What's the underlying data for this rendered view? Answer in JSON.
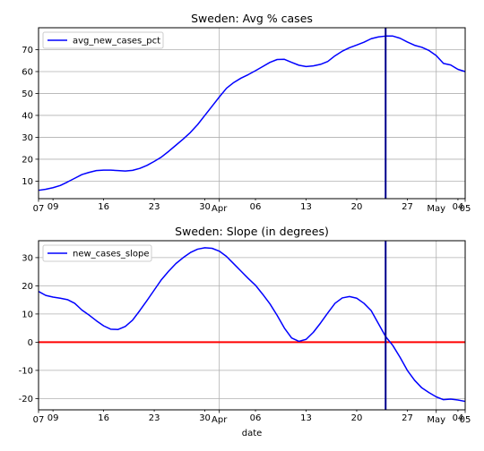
{
  "chart_data": [
    {
      "type": "line",
      "title": "Sweden: Avg % cases",
      "xlabel": "",
      "ylabel": "",
      "ylim": [
        2,
        80
      ],
      "grid": true,
      "legend_position": "top-left",
      "x_ticks": [
        "07",
        "09",
        "16",
        "23",
        "30",
        "Apr",
        "06",
        "13",
        "20",
        "27",
        "May",
        "04",
        "05"
      ],
      "y_ticks": [
        10,
        20,
        30,
        40,
        50,
        60,
        70
      ],
      "series": [
        {
          "name": "avg_new_cases_pct",
          "color": "#0000ff",
          "x": [
            "Mar 07",
            "Mar 08",
            "Mar 09",
            "Mar 10",
            "Mar 11",
            "Mar 12",
            "Mar 13",
            "Mar 14",
            "Mar 15",
            "Mar 16",
            "Mar 17",
            "Mar 18",
            "Mar 19",
            "Mar 20",
            "Mar 21",
            "Mar 22",
            "Mar 23",
            "Mar 24",
            "Mar 25",
            "Mar 26",
            "Mar 27",
            "Mar 28",
            "Mar 29",
            "Mar 30",
            "Mar 31",
            "Apr 01",
            "Apr 02",
            "Apr 03",
            "Apr 04",
            "Apr 05",
            "Apr 06",
            "Apr 07",
            "Apr 08",
            "Apr 09",
            "Apr 10",
            "Apr 11",
            "Apr 12",
            "Apr 13",
            "Apr 14",
            "Apr 15",
            "Apr 16",
            "Apr 17",
            "Apr 18",
            "Apr 19",
            "Apr 20",
            "Apr 21",
            "Apr 22",
            "Apr 23",
            "Apr 24",
            "Apr 25",
            "Apr 26",
            "Apr 27",
            "Apr 28",
            "Apr 29",
            "Apr 30",
            "May 01",
            "May 02",
            "May 03",
            "May 04",
            "May 05"
          ],
          "values": [
            5.8,
            6.3,
            7.0,
            8.0,
            9.6,
            11.3,
            13.0,
            14.0,
            14.8,
            15.0,
            15.0,
            14.8,
            14.6,
            14.9,
            15.8,
            17.2,
            19.0,
            21.0,
            23.6,
            26.4,
            29.2,
            32.2,
            35.8,
            40.0,
            44.2,
            48.4,
            52.4,
            55.0,
            57.0,
            58.6,
            60.4,
            62.3,
            64.2,
            65.5,
            65.6,
            64.2,
            62.9,
            62.3,
            62.6,
            63.3,
            64.6,
            67.2,
            69.3,
            70.9,
            72.1,
            73.4,
            75.0,
            75.8,
            76.2,
            76.2,
            75.2,
            73.5,
            72.0,
            71.1,
            69.6,
            67.3,
            63.7,
            63.0,
            61.0,
            60.0
          ],
          "marker_x": "Apr 24"
        }
      ]
    },
    {
      "type": "line",
      "title": "Sweden: Slope (in degrees)",
      "xlabel": "date",
      "ylabel": "",
      "ylim": [
        -24,
        36
      ],
      "grid": true,
      "legend_position": "top-left",
      "x_ticks": [
        "07",
        "09",
        "16",
        "23",
        "30",
        "Apr",
        "06",
        "13",
        "20",
        "27",
        "May",
        "04",
        "05"
      ],
      "y_ticks": [
        -20,
        -10,
        0,
        10,
        20,
        30
      ],
      "zero_line_color": "#ff0000",
      "series": [
        {
          "name": "new_cases_slope",
          "color": "#0000ff",
          "x": [
            "Mar 07",
            "Mar 08",
            "Mar 09",
            "Mar 10",
            "Mar 11",
            "Mar 12",
            "Mar 13",
            "Mar 14",
            "Mar 15",
            "Mar 16",
            "Mar 17",
            "Mar 18",
            "Mar 19",
            "Mar 20",
            "Mar 21",
            "Mar 22",
            "Mar 23",
            "Mar 24",
            "Mar 25",
            "Mar 26",
            "Mar 27",
            "Mar 28",
            "Mar 29",
            "Mar 30",
            "Mar 31",
            "Apr 01",
            "Apr 02",
            "Apr 03",
            "Apr 04",
            "Apr 05",
            "Apr 06",
            "Apr 07",
            "Apr 08",
            "Apr 09",
            "Apr 10",
            "Apr 11",
            "Apr 12",
            "Apr 13",
            "Apr 14",
            "Apr 15",
            "Apr 16",
            "Apr 17",
            "Apr 18",
            "Apr 19",
            "Apr 20",
            "Apr 21",
            "Apr 22",
            "Apr 23",
            "Apr 24",
            "Apr 25",
            "Apr 26",
            "Apr 27",
            "Apr 28",
            "Apr 29",
            "Apr 30",
            "May 01",
            "May 02",
            "May 03",
            "May 04",
            "May 05"
          ],
          "values": [
            18.0,
            16.6,
            16.0,
            15.6,
            15.1,
            13.8,
            11.4,
            9.6,
            7.6,
            5.8,
            4.6,
            4.5,
            5.6,
            7.8,
            11.2,
            14.8,
            18.5,
            22.2,
            25.2,
            27.9,
            30.0,
            31.8,
            33.0,
            33.5,
            33.3,
            32.3,
            30.4,
            27.8,
            25.2,
            22.6,
            20.2,
            17.0,
            13.6,
            9.5,
            5.0,
            1.5,
            0.3,
            1.0,
            3.5,
            6.8,
            10.4,
            13.8,
            15.7,
            16.2,
            15.6,
            13.8,
            11.2,
            6.6,
            2.0,
            -1.2,
            -5.4,
            -10.0,
            -13.5,
            -16.2,
            -17.9,
            -19.4,
            -20.4,
            -20.2,
            -20.5,
            -21.0
          ],
          "marker_x": "Apr 24"
        }
      ]
    }
  ]
}
